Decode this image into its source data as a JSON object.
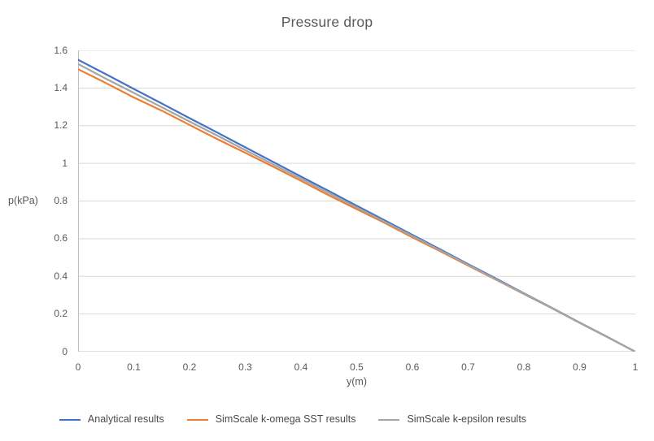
{
  "chart_data": {
    "type": "line",
    "title": "Pressure drop",
    "xlabel": "y(m)",
    "ylabel": "p(kPa)",
    "xlim": [
      0,
      1
    ],
    "ylim": [
      0,
      1.6
    ],
    "grid": "horizontal",
    "legend_position": "bottom",
    "x_tick_values": [
      0,
      0.1,
      0.2,
      0.3,
      0.4,
      0.5,
      0.6,
      0.7,
      0.8,
      0.9,
      1
    ],
    "x_ticks": [
      "0",
      "0.1",
      "0.2",
      "0.3",
      "0.4",
      "0.5",
      "0.6",
      "0.7",
      "0.8",
      "0.9",
      "1"
    ],
    "y_tick_values": [
      0,
      0.2,
      0.4,
      0.6,
      0.8,
      1,
      1.2,
      1.4,
      1.6
    ],
    "y_ticks": [
      "0",
      "0.2",
      "0.4",
      "0.6",
      "0.8",
      "1",
      "1.2",
      "1.4",
      "1.6"
    ],
    "x": [
      0,
      0.05,
      0.1,
      0.15,
      0.2,
      0.25,
      0.3,
      0.35,
      0.4,
      0.45,
      0.5,
      0.55,
      0.6,
      0.65,
      0.7,
      0.75,
      0.8,
      0.85,
      0.9,
      0.95,
      1
    ],
    "series": [
      {
        "name": "Analytical results",
        "color": "#4472C4",
        "values": [
          1.55,
          1.473,
          1.395,
          1.318,
          1.24,
          1.163,
          1.085,
          1.008,
          0.93,
          0.853,
          0.775,
          0.698,
          0.62,
          0.543,
          0.465,
          0.388,
          0.31,
          0.233,
          0.155,
          0.078,
          0
        ]
      },
      {
        "name": "SimScale k-omega SST results",
        "color": "#ED7D31",
        "values": [
          1.5,
          1.426,
          1.35,
          1.28,
          1.204,
          1.128,
          1.056,
          0.983,
          0.907,
          0.83,
          0.757,
          0.684,
          0.607,
          0.533,
          0.457,
          0.382,
          0.306,
          0.231,
          0.153,
          0.077,
          0
        ]
      },
      {
        "name": "SimScale k-epsilon results",
        "color": "#A5A5A5",
        "values": [
          1.528,
          1.449,
          1.374,
          1.298,
          1.222,
          1.147,
          1.07,
          0.995,
          0.918,
          0.842,
          0.766,
          0.69,
          0.614,
          0.538,
          0.461,
          0.384,
          0.308,
          0.231,
          0.154,
          0.077,
          0
        ]
      }
    ],
    "colors": {
      "gridline": "#D9D9D9",
      "axis": "#BFBFBF",
      "text": "#595959",
      "background": "#FFFFFF"
    }
  }
}
